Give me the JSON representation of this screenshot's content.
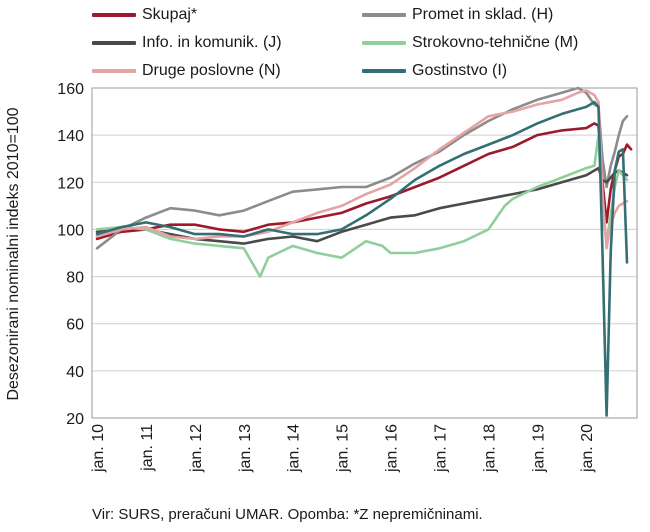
{
  "chart_data": {
    "type": "line",
    "title": "",
    "xlabel": "",
    "ylabel": "Desezonirani nominalni indeks 2010=100",
    "ylim": [
      20,
      160
    ],
    "yticks": [
      "20",
      "40",
      "60",
      "80",
      "100",
      "120",
      "140",
      "160"
    ],
    "xticks": [
      "jan. 10",
      "jan. 11",
      "jan. 12",
      "jan. 13",
      "jan. 14",
      "jan. 15",
      "jan. 16",
      "jan. 17",
      "jan. 18",
      "jan. 19",
      "jan. 20"
    ],
    "x_start": "2010-01",
    "x_end": "2020-11",
    "grid": "horizontal",
    "legend": "top",
    "series": [
      {
        "name": "Skupaj*",
        "color": "#9b1b2c",
        "points": [
          [
            0,
            96
          ],
          [
            6,
            99
          ],
          [
            12,
            100
          ],
          [
            18,
            102
          ],
          [
            24,
            102
          ],
          [
            30,
            100
          ],
          [
            36,
            99
          ],
          [
            42,
            102
          ],
          [
            48,
            103
          ],
          [
            54,
            105
          ],
          [
            60,
            107
          ],
          [
            66,
            111
          ],
          [
            72,
            114
          ],
          [
            78,
            118
          ],
          [
            84,
            122
          ],
          [
            90,
            127
          ],
          [
            96,
            132
          ],
          [
            102,
            135
          ],
          [
            108,
            140
          ],
          [
            114,
            142
          ],
          [
            120,
            143
          ],
          [
            122,
            145
          ],
          [
            123,
            144
          ],
          [
            124,
            120
          ],
          [
            125,
            103
          ],
          [
            126,
            117
          ],
          [
            127,
            125
          ],
          [
            128,
            131
          ],
          [
            129,
            132
          ],
          [
            130,
            136
          ],
          [
            131,
            134
          ]
        ]
      },
      {
        "name": "Promet in sklad. (H)",
        "color": "#8c8c8c",
        "points": [
          [
            0,
            92
          ],
          [
            6,
            100
          ],
          [
            12,
            105
          ],
          [
            18,
            109
          ],
          [
            24,
            108
          ],
          [
            30,
            106
          ],
          [
            36,
            108
          ],
          [
            42,
            112
          ],
          [
            48,
            116
          ],
          [
            54,
            117
          ],
          [
            60,
            118
          ],
          [
            66,
            118
          ],
          [
            72,
            122
          ],
          [
            78,
            128
          ],
          [
            84,
            133
          ],
          [
            90,
            140
          ],
          [
            96,
            146
          ],
          [
            102,
            151
          ],
          [
            108,
            155
          ],
          [
            114,
            158
          ],
          [
            118,
            160
          ],
          [
            120,
            158
          ],
          [
            122,
            153
          ],
          [
            123,
            152
          ],
          [
            124,
            130
          ],
          [
            125,
            118
          ],
          [
            126,
            127
          ],
          [
            127,
            133
          ],
          [
            128,
            140
          ],
          [
            129,
            146
          ],
          [
            130,
            148
          ]
        ]
      },
      {
        "name": "Info. in komunik. (J)",
        "color": "#4a4a4a",
        "points": [
          [
            0,
            99
          ],
          [
            6,
            101
          ],
          [
            12,
            100
          ],
          [
            18,
            98
          ],
          [
            24,
            96
          ],
          [
            30,
            95
          ],
          [
            36,
            94
          ],
          [
            42,
            96
          ],
          [
            48,
            97
          ],
          [
            54,
            95
          ],
          [
            60,
            99
          ],
          [
            66,
            102
          ],
          [
            72,
            105
          ],
          [
            78,
            106
          ],
          [
            84,
            109
          ],
          [
            90,
            111
          ],
          [
            96,
            113
          ],
          [
            102,
            115
          ],
          [
            108,
            117
          ],
          [
            114,
            120
          ],
          [
            120,
            123
          ],
          [
            122,
            125
          ],
          [
            123,
            126
          ],
          [
            124,
            121
          ],
          [
            125,
            120
          ],
          [
            126,
            122
          ],
          [
            127,
            124
          ],
          [
            128,
            125
          ],
          [
            129,
            124
          ],
          [
            130,
            123
          ]
        ]
      },
      {
        "name": "Strokovno-tehnične (M)",
        "color": "#8fcf9b",
        "points": [
          [
            0,
            100
          ],
          [
            6,
            101
          ],
          [
            12,
            100
          ],
          [
            18,
            96
          ],
          [
            24,
            94
          ],
          [
            30,
            93
          ],
          [
            36,
            92
          ],
          [
            40,
            80
          ],
          [
            42,
            88
          ],
          [
            48,
            93
          ],
          [
            54,
            90
          ],
          [
            60,
            88
          ],
          [
            66,
            95
          ],
          [
            70,
            93
          ],
          [
            72,
            90
          ],
          [
            78,
            90
          ],
          [
            84,
            92
          ],
          [
            90,
            95
          ],
          [
            96,
            100
          ],
          [
            100,
            110
          ],
          [
            102,
            113
          ],
          [
            108,
            118
          ],
          [
            114,
            122
          ],
          [
            120,
            126
          ],
          [
            122,
            127
          ],
          [
            123,
            140
          ],
          [
            124,
            106
          ],
          [
            125,
            95
          ],
          [
            126,
            106
          ],
          [
            127,
            118
          ],
          [
            128,
            125
          ],
          [
            129,
            123
          ],
          [
            130,
            121
          ]
        ]
      },
      {
        "name": "Druge poslovne (N)",
        "color": "#e6a3a3",
        "points": [
          [
            0,
            97
          ],
          [
            6,
            100
          ],
          [
            12,
            101
          ],
          [
            18,
            97
          ],
          [
            24,
            96
          ],
          [
            30,
            97
          ],
          [
            36,
            97
          ],
          [
            42,
            99
          ],
          [
            48,
            103
          ],
          [
            54,
            107
          ],
          [
            60,
            110
          ],
          [
            66,
            115
          ],
          [
            72,
            119
          ],
          [
            78,
            126
          ],
          [
            84,
            134
          ],
          [
            90,
            141
          ],
          [
            96,
            148
          ],
          [
            102,
            150
          ],
          [
            108,
            153
          ],
          [
            114,
            155
          ],
          [
            118,
            158
          ],
          [
            120,
            159
          ],
          [
            122,
            157
          ],
          [
            123,
            154
          ],
          [
            124,
            115
          ],
          [
            125,
            92
          ],
          [
            126,
            102
          ],
          [
            127,
            107
          ],
          [
            128,
            110
          ],
          [
            129,
            111
          ],
          [
            130,
            112
          ]
        ]
      },
      {
        "name": "Gostinstvo (I)",
        "color": "#336f73",
        "points": [
          [
            0,
            98
          ],
          [
            6,
            101
          ],
          [
            12,
            103
          ],
          [
            18,
            101
          ],
          [
            24,
            98
          ],
          [
            30,
            98
          ],
          [
            36,
            97
          ],
          [
            42,
            100
          ],
          [
            48,
            98
          ],
          [
            54,
            98
          ],
          [
            60,
            100
          ],
          [
            66,
            106
          ],
          [
            72,
            113
          ],
          [
            78,
            121
          ],
          [
            84,
            127
          ],
          [
            90,
            132
          ],
          [
            96,
            136
          ],
          [
            102,
            140
          ],
          [
            108,
            145
          ],
          [
            114,
            149
          ],
          [
            120,
            152
          ],
          [
            122,
            154
          ],
          [
            123,
            152
          ],
          [
            124,
            90
          ],
          [
            125,
            21
          ],
          [
            126,
            90
          ],
          [
            127,
            125
          ],
          [
            128,
            133
          ],
          [
            129,
            134
          ],
          [
            130,
            86
          ]
        ]
      }
    ]
  },
  "footnote": "Vir: SURS, preračuni UMAR. Opomba: *Z nepremičninami."
}
